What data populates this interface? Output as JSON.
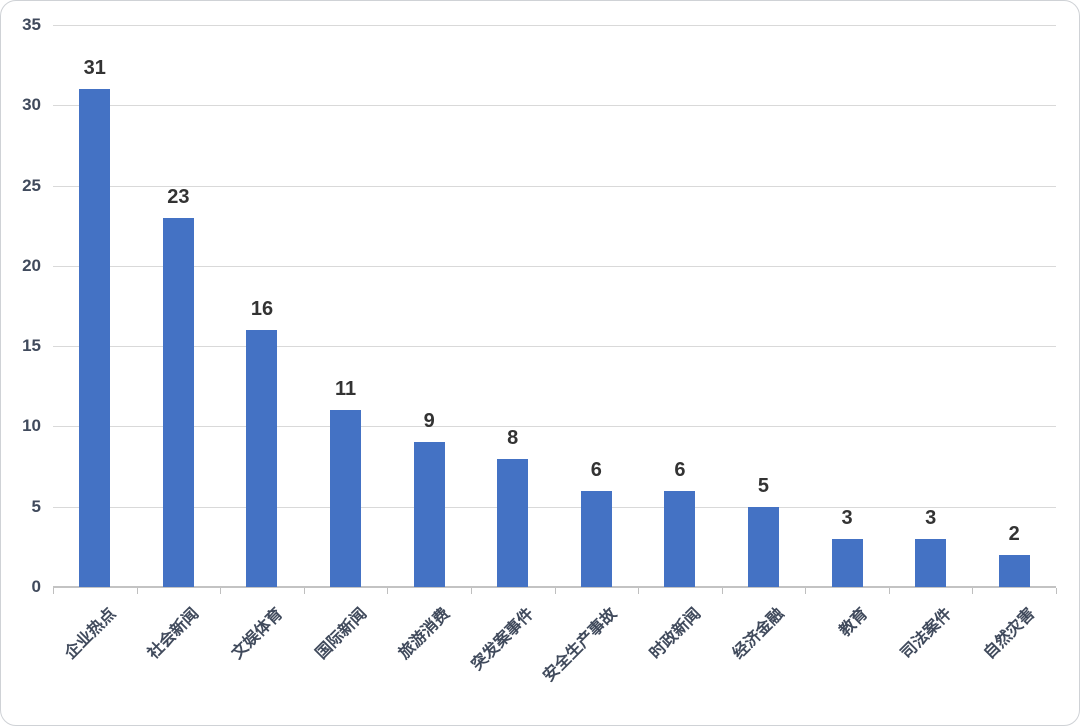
{
  "chart_data": {
    "type": "bar",
    "title": "",
    "xlabel": "",
    "ylabel": "",
    "categories": [
      "企业热点",
      "社会新闻",
      "文娱体育",
      "国际新闻",
      "旅游消费",
      "突发案事件",
      "安全生产事故",
      "时政新闻",
      "经济金融",
      "教育",
      "司法案件",
      "自然灾害"
    ],
    "values": [
      31,
      23,
      16,
      11,
      9,
      8,
      6,
      6,
      5,
      3,
      3,
      2
    ],
    "yticks": [
      0,
      5,
      10,
      15,
      20,
      25,
      30,
      35
    ],
    "ylim": [
      0,
      35
    ],
    "grid": true,
    "legend_position": "none",
    "data_labels_shown": true,
    "x_labels_rotation_deg": 45,
    "colors": {
      "bar": "#4472C4",
      "gridline": "#D9D9D9",
      "axis_line": "#C3C3C3",
      "value_label": "#333333",
      "tick_label": "#404A5C",
      "background": "#FFFFFF"
    }
  }
}
